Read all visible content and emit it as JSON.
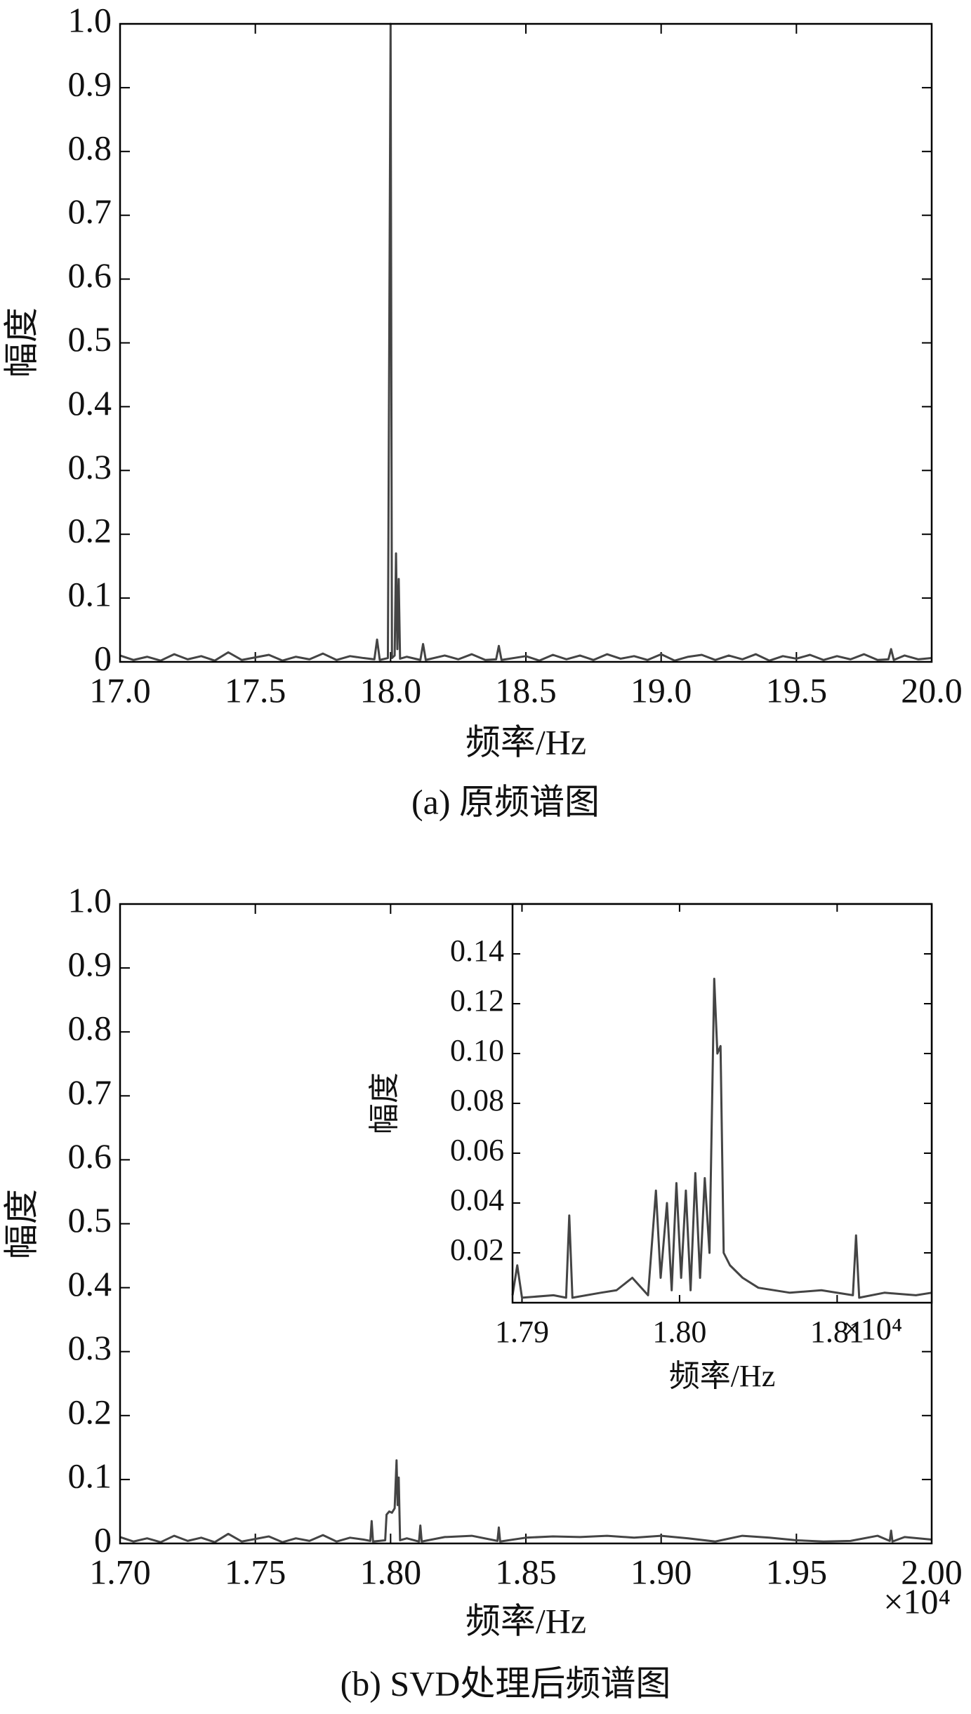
{
  "chart_data": [
    {
      "type": "line",
      "caption": "(a) 原频谱图",
      "xlabel": "频率/Hz",
      "ylabel": "幅度",
      "color": "#444444",
      "xlim": [
        17,
        20
      ],
      "ylim": [
        0,
        1
      ],
      "xticks": [
        {
          "value": 17,
          "label": "17.0"
        },
        17.5,
        {
          "value": 18,
          "label": "18.0"
        },
        18.5,
        {
          "value": 19,
          "label": "19.0"
        },
        19.5,
        {
          "value": 20,
          "label": "20.0"
        }
      ],
      "yticks": [
        0,
        0.1,
        0.2,
        0.3,
        0.4,
        0.5,
        0.6,
        0.7,
        0.8,
        0.9,
        {
          "value": 1,
          "label": "1.0"
        }
      ],
      "x": [
        17.0,
        17.05,
        17.1,
        17.15,
        17.2,
        17.25,
        17.3,
        17.35,
        17.4,
        17.45,
        17.5,
        17.55,
        17.6,
        17.65,
        17.7,
        17.75,
        17.8,
        17.85,
        17.9,
        17.94,
        17.95,
        17.96,
        17.99,
        18.0,
        18.005,
        18.015,
        18.02,
        18.025,
        18.03,
        18.035,
        18.06,
        18.11,
        18.12,
        18.13,
        18.2,
        18.25,
        18.3,
        18.35,
        18.39,
        18.4,
        18.41,
        18.5,
        18.55,
        18.6,
        18.65,
        18.7,
        18.75,
        18.8,
        18.85,
        18.9,
        18.95,
        19.0,
        19.05,
        19.1,
        19.15,
        19.2,
        19.25,
        19.3,
        19.35,
        19.4,
        19.45,
        19.5,
        19.55,
        19.6,
        19.65,
        19.7,
        19.75,
        19.8,
        19.84,
        19.85,
        19.86,
        19.9,
        19.95,
        20.0
      ],
      "values": [
        0.01,
        0.003,
        0.008,
        0.002,
        0.012,
        0.004,
        0.009,
        0.002,
        0.015,
        0.003,
        0.007,
        0.011,
        0.002,
        0.008,
        0.004,
        0.013,
        0.003,
        0.009,
        0.006,
        0.004,
        0.035,
        0.003,
        0.006,
        1.0,
        0.006,
        0.01,
        0.17,
        0.02,
        0.13,
        0.005,
        0.008,
        0.003,
        0.028,
        0.003,
        0.01,
        0.004,
        0.012,
        0.003,
        0.004,
        0.025,
        0.003,
        0.009,
        0.002,
        0.011,
        0.004,
        0.01,
        0.003,
        0.012,
        0.005,
        0.009,
        0.003,
        0.012,
        0.002,
        0.008,
        0.011,
        0.003,
        0.01,
        0.004,
        0.012,
        0.002,
        0.009,
        0.005,
        0.011,
        0.003,
        0.009,
        0.004,
        0.012,
        0.003,
        0.004,
        0.02,
        0.003,
        0.01,
        0.004,
        0.006
      ]
    },
    {
      "type": "line",
      "caption": "(b) SVD处理后频谱图",
      "xlabel": "频率/Hz",
      "ylabel": "幅度",
      "x_multiplier": "×10⁴",
      "color": "#444444",
      "xlim": [
        17000,
        20000
      ],
      "ylim": [
        0,
        1
      ],
      "xticks": [
        {
          "value": 17000,
          "label": "1.70"
        },
        {
          "value": 17500,
          "label": "1.75"
        },
        {
          "value": 18000,
          "label": "1.80"
        },
        {
          "value": 18500,
          "label": "1.85"
        },
        {
          "value": 19000,
          "label": "1.90"
        },
        {
          "value": 19500,
          "label": "1.95"
        },
        {
          "value": 20000,
          "label": "2.00"
        }
      ],
      "yticks": [
        0,
        0.1,
        0.2,
        0.3,
        0.4,
        0.5,
        0.6,
        0.7,
        0.8,
        0.9,
        {
          "value": 1,
          "label": "1.0"
        }
      ],
      "x": [
        17000,
        17050,
        17100,
        17150,
        17200,
        17250,
        17300,
        17350,
        17400,
        17450,
        17500,
        17550,
        17600,
        17650,
        17700,
        17750,
        17800,
        17850,
        17900,
        17925,
        17930,
        17935,
        17980,
        17985,
        17995,
        18005,
        18015,
        18022,
        18026,
        18030,
        18035,
        18060,
        18105,
        18110,
        18115,
        18200,
        18300,
        18395,
        18400,
        18405,
        18500,
        18600,
        18700,
        18800,
        18900,
        19000,
        19100,
        19200,
        19300,
        19400,
        19500,
        19600,
        19700,
        19800,
        19845,
        19850,
        19855,
        19900,
        20000
      ],
      "values": [
        0.01,
        0.003,
        0.008,
        0.002,
        0.012,
        0.004,
        0.009,
        0.002,
        0.015,
        0.003,
        0.007,
        0.011,
        0.002,
        0.008,
        0.004,
        0.013,
        0.003,
        0.009,
        0.006,
        0.004,
        0.035,
        0.003,
        0.005,
        0.045,
        0.05,
        0.048,
        0.055,
        0.13,
        0.06,
        0.103,
        0.005,
        0.008,
        0.003,
        0.028,
        0.003,
        0.01,
        0.012,
        0.004,
        0.025,
        0.003,
        0.009,
        0.011,
        0.01,
        0.012,
        0.009,
        0.012,
        0.008,
        0.003,
        0.012,
        0.009,
        0.005,
        0.003,
        0.004,
        0.012,
        0.004,
        0.02,
        0.003,
        0.01,
        0.006
      ]
    },
    {
      "type": "line",
      "xlabel": "频率/Hz",
      "ylabel": "幅度",
      "x_multiplier": "×10⁴",
      "color": "#444444",
      "xlim": [
        17894,
        18160
      ],
      "ylim": [
        0,
        0.16
      ],
      "xticks": [
        {
          "value": 17900,
          "label": "1.79"
        },
        {
          "value": 18000,
          "label": "1.80"
        },
        {
          "value": 18100,
          "label": "1.81"
        }
      ],
      "yticks": [
        0.02,
        0.04,
        0.06,
        0.08,
        {
          "value": 0.1,
          "label": "0.10"
        },
        0.12,
        0.14
      ],
      "x": [
        17894,
        17897,
        17900,
        17920,
        17928,
        17930,
        17932,
        17950,
        17960,
        17970,
        17980,
        17985,
        17988,
        17992,
        17995,
        17998,
        18001,
        18004,
        18007,
        18010,
        18013,
        18016,
        18019,
        18022,
        18024,
        18026,
        18028,
        18032,
        18040,
        18050,
        18070,
        18090,
        18110,
        18112,
        18114,
        18130,
        18150,
        18160
      ],
      "values": [
        0.003,
        0.015,
        0.002,
        0.003,
        0.002,
        0.035,
        0.002,
        0.004,
        0.005,
        0.01,
        0.003,
        0.045,
        0.01,
        0.04,
        0.005,
        0.048,
        0.01,
        0.045,
        0.005,
        0.052,
        0.01,
        0.05,
        0.02,
        0.13,
        0.1,
        0.103,
        0.02,
        0.015,
        0.01,
        0.006,
        0.004,
        0.005,
        0.003,
        0.027,
        0.002,
        0.004,
        0.003,
        0.004
      ]
    }
  ]
}
